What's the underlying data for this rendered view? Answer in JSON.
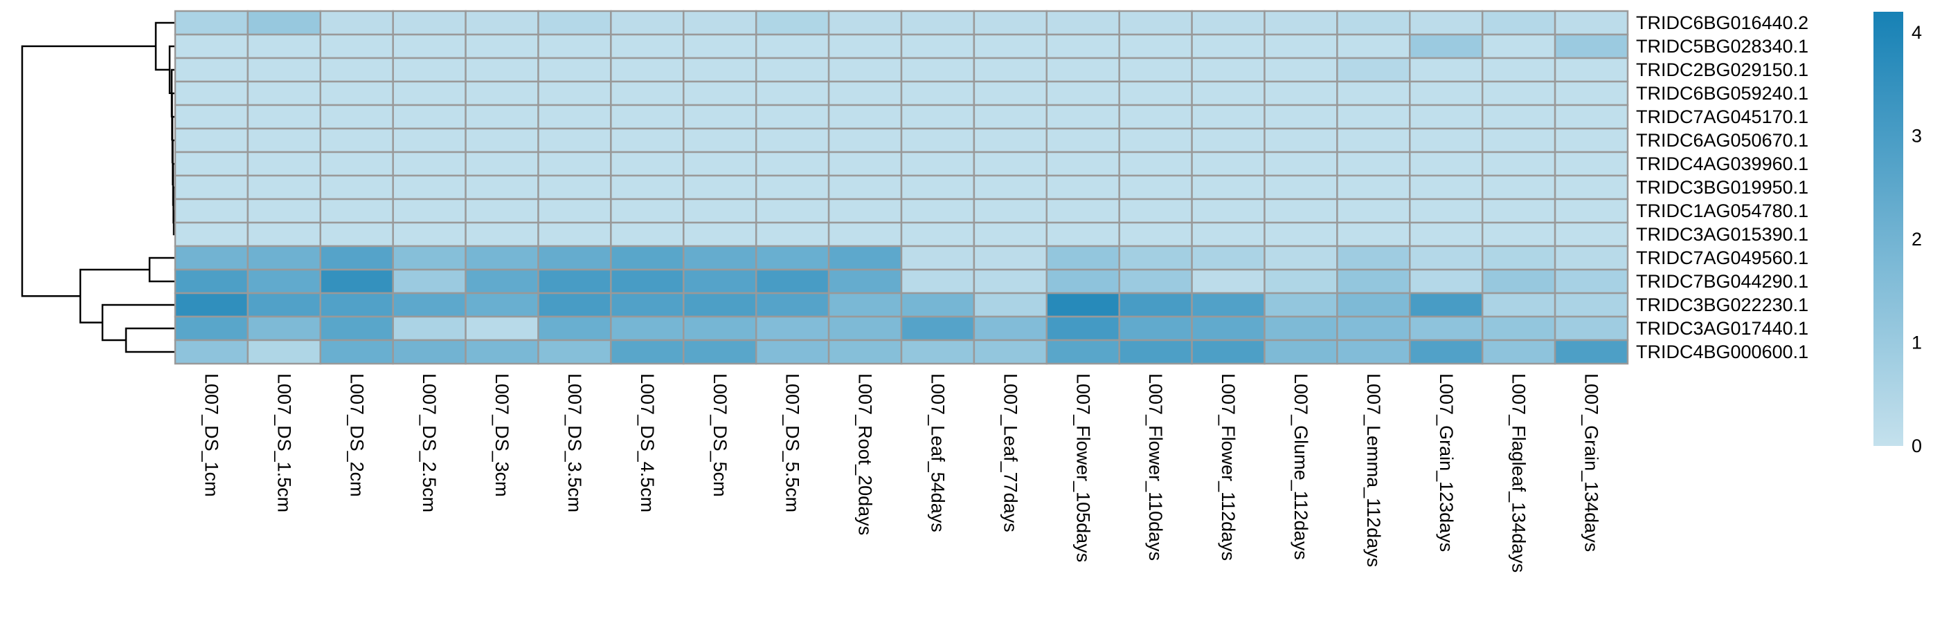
{
  "chart_data": {
    "type": "heatmap",
    "columns": [
      "L007_DS_1cm",
      "L007_DS_1.5cm",
      "L007_DS_2cm",
      "L007_DS_2.5cm",
      "L007_DS_3cm",
      "L007_DS_3.5cm",
      "L007_DS_4.5cm",
      "L007_DS_5cm",
      "L007_DS_5.5cm",
      "L007_Root_20days",
      "L007_Leaf_54days",
      "L007_Leaf_77days",
      "L007_Flower_105days",
      "L007_Flower_110days",
      "L007_Flower_112days",
      "L007_Glume_112days",
      "L007_Lemma_112days",
      "L007_Grain_123days",
      "L007_Flagleaf_134days",
      "L007_Grain_134days"
    ],
    "rows": [
      "TRIDC6BG016440.2",
      "TRIDC5BG028340.1",
      "TRIDC2BG029150.1",
      "TRIDC6BG059240.1",
      "TRIDC7AG045170.1",
      "TRIDC6AG050670.1",
      "TRIDC4AG039960.1",
      "TRIDC3BG019950.1",
      "TRIDC1AG054780.1",
      "TRIDC3AG015390.1",
      "TRIDC7AG049560.1",
      "TRIDC7BG044290.1",
      "TRIDC3BG022230.1",
      "TRIDC3AG017440.1",
      "TRIDC4BG000600.1"
    ],
    "values": [
      [
        0.6,
        1.1,
        0.2,
        0.2,
        0.2,
        0.4,
        0.2,
        0.2,
        0.5,
        0.2,
        0.2,
        0.2,
        0.2,
        0.2,
        0.2,
        0.2,
        0.3,
        0.2,
        0.4,
        0.2
      ],
      [
        0.1,
        0.1,
        0.1,
        0.1,
        0.1,
        0.1,
        0.1,
        0.1,
        0.1,
        0.1,
        0.1,
        0.1,
        0.1,
        0.1,
        0.1,
        0.1,
        0.1,
        1.0,
        0.1,
        1.0
      ],
      [
        0.1,
        0.1,
        0.1,
        0.1,
        0.1,
        0.1,
        0.1,
        0.1,
        0.1,
        0.1,
        0.1,
        0.1,
        0.1,
        0.1,
        0.1,
        0.1,
        0.4,
        0.1,
        0.1,
        0.1
      ],
      [
        0.1,
        0.1,
        0.1,
        0.1,
        0.1,
        0.1,
        0.1,
        0.1,
        0.1,
        0.1,
        0.1,
        0.1,
        0.1,
        0.1,
        0.1,
        0.1,
        0.1,
        0.1,
        0.1,
        0.1
      ],
      [
        0.1,
        0.1,
        0.1,
        0.1,
        0.1,
        0.1,
        0.1,
        0.1,
        0.1,
        0.1,
        0.1,
        0.1,
        0.1,
        0.1,
        0.1,
        0.1,
        0.1,
        0.1,
        0.1,
        0.1
      ],
      [
        0.1,
        0.1,
        0.1,
        0.1,
        0.1,
        0.1,
        0.1,
        0.1,
        0.1,
        0.1,
        0.1,
        0.1,
        0.1,
        0.1,
        0.1,
        0.1,
        0.1,
        0.1,
        0.1,
        0.1
      ],
      [
        0.1,
        0.1,
        0.1,
        0.1,
        0.1,
        0.1,
        0.1,
        0.1,
        0.1,
        0.1,
        0.1,
        0.1,
        0.1,
        0.1,
        0.1,
        0.1,
        0.1,
        0.1,
        0.1,
        0.1
      ],
      [
        0.1,
        0.1,
        0.1,
        0.1,
        0.1,
        0.1,
        0.1,
        0.1,
        0.1,
        0.1,
        0.1,
        0.1,
        0.1,
        0.1,
        0.1,
        0.1,
        0.1,
        0.1,
        0.1,
        0.1
      ],
      [
        0.1,
        0.1,
        0.1,
        0.1,
        0.1,
        0.1,
        0.1,
        0.1,
        0.1,
        0.1,
        0.1,
        0.1,
        0.1,
        0.1,
        0.1,
        0.1,
        0.1,
        0.1,
        0.1,
        0.1
      ],
      [
        0.1,
        0.1,
        0.1,
        0.1,
        0.1,
        0.1,
        0.1,
        0.1,
        0.1,
        0.1,
        0.1,
        0.1,
        0.1,
        0.1,
        0.1,
        0.1,
        0.1,
        0.1,
        0.1,
        0.1
      ],
      [
        2.0,
        2.1,
        2.7,
        1.5,
        1.9,
        2.3,
        2.6,
        2.3,
        2.2,
        2.5,
        0.2,
        0.2,
        1.2,
        0.8,
        0.6,
        0.3,
        0.9,
        0.4,
        0.5,
        0.3
      ],
      [
        2.9,
        2.4,
        3.5,
        1.0,
        2.4,
        3.0,
        3.0,
        2.7,
        3.0,
        2.3,
        0.3,
        0.3,
        1.3,
        1.0,
        0.2,
        0.5,
        1.2,
        0.4,
        1.1,
        0.7
      ],
      [
        3.6,
        2.8,
        2.8,
        2.5,
        2.2,
        3.0,
        2.8,
        2.9,
        2.7,
        1.8,
        1.9,
        0.6,
        3.8,
        3.0,
        2.8,
        1.2,
        1.7,
        3.0,
        0.6,
        0.6
      ],
      [
        2.6,
        1.7,
        2.6,
        0.6,
        0.3,
        2.2,
        1.9,
        1.9,
        1.6,
        1.7,
        2.7,
        1.6,
        3.1,
        2.4,
        2.4,
        1.7,
        1.6,
        1.3,
        1.2,
        0.9
      ],
      [
        1.3,
        0.5,
        2.2,
        2.0,
        1.8,
        1.5,
        2.6,
        2.6,
        1.6,
        1.5,
        1.2,
        1.2,
        2.6,
        2.9,
        2.9,
        1.7,
        1.6,
        2.8,
        1.3,
        2.9
      ]
    ],
    "legend": {
      "ticks": [
        0,
        1,
        2,
        3,
        4
      ],
      "min": 0,
      "max": 4.2,
      "color_low": "#c4e1ed",
      "color_high": "#1781b5"
    },
    "cell_border_color": "#999999",
    "row_dendrogram": true
  }
}
